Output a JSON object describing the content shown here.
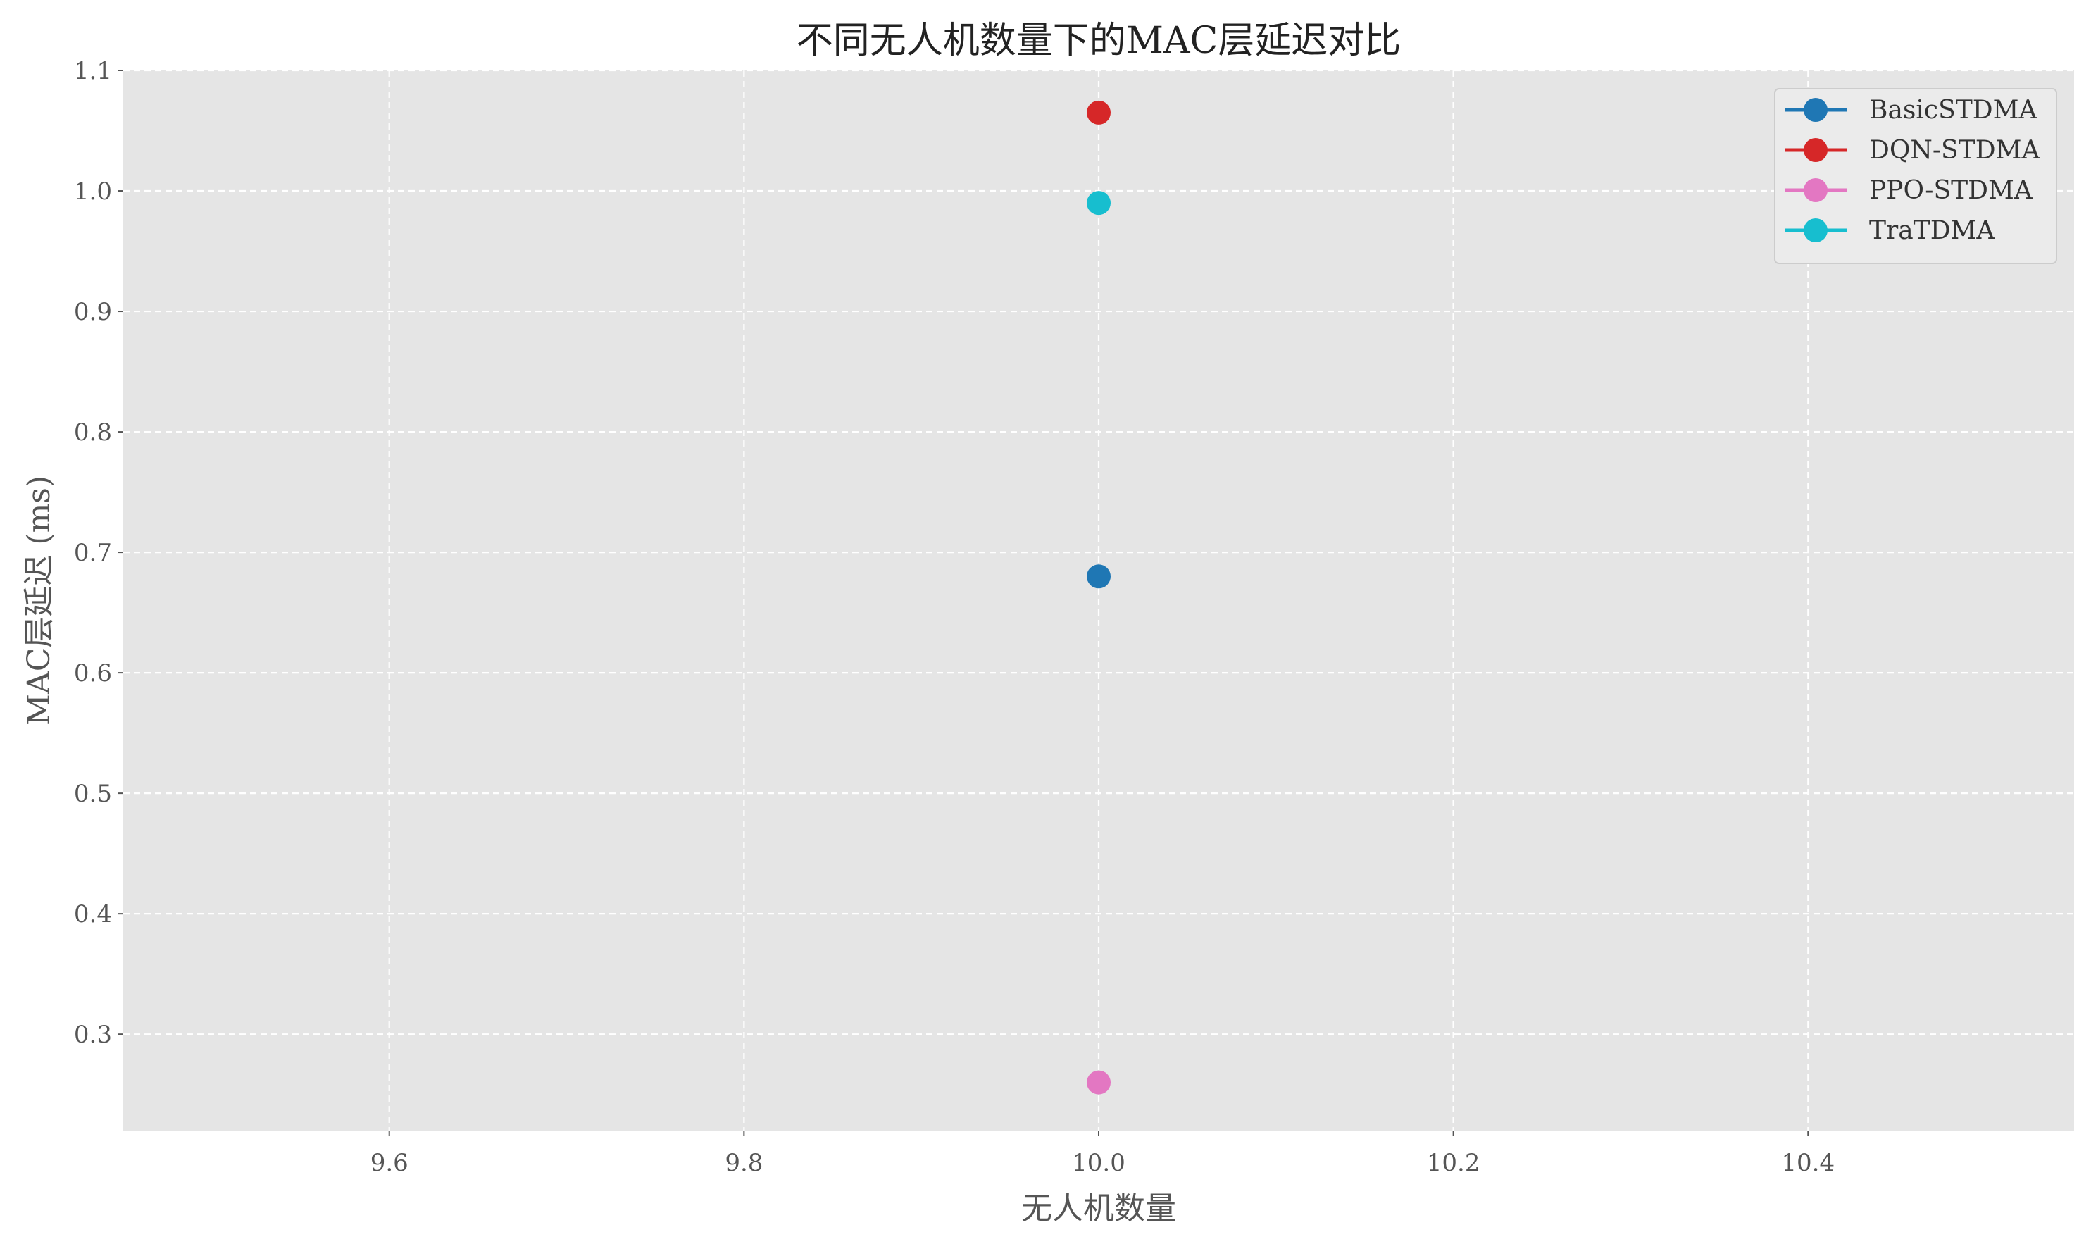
{
  "chart_data": {
    "type": "scatter",
    "title": "不同无人机数量下的MAC层延迟对比",
    "xlabel": "无人机数量",
    "ylabel": "MAC层延迟 (ms)",
    "xlim": [
      9.45,
      10.55
    ],
    "ylim": [
      0.22,
      1.1
    ],
    "x_ticks": [
      9.6,
      9.8,
      10.0,
      10.2,
      10.4
    ],
    "y_ticks": [
      0.3,
      0.4,
      0.5,
      0.6,
      0.7,
      0.8,
      0.9,
      1.0,
      1.1
    ],
    "grid": true,
    "legend_position": "top-right",
    "style": {
      "plot_background": "#e5e5e5",
      "grid_color": "#ffffff"
    },
    "series": [
      {
        "name": "BasicSTDMA",
        "color": "#1f77b4",
        "x": [
          10.0
        ],
        "y": [
          0.68
        ]
      },
      {
        "name": "DQN-STDMA",
        "color": "#d62728",
        "x": [
          10.0
        ],
        "y": [
          1.065
        ]
      },
      {
        "name": "PPO-STDMA",
        "color": "#e377c2",
        "x": [
          10.0
        ],
        "y": [
          0.26
        ]
      },
      {
        "name": "TraTDMA",
        "color": "#17becf",
        "x": [
          10.0
        ],
        "y": [
          0.99
        ]
      }
    ]
  }
}
